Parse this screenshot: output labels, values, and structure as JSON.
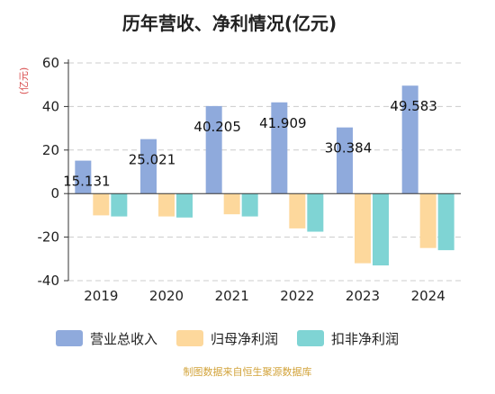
{
  "chart_data": {
    "type": "bar",
    "title": "历年营收、净利情况(亿元)",
    "ylabel": "(亿元)",
    "ylim": [
      -40,
      60
    ],
    "yticks": [
      -40,
      -20,
      0,
      20,
      40,
      60
    ],
    "grid": true,
    "legend_position": "bottom",
    "categories": [
      "2019",
      "2020",
      "2021",
      "2022",
      "2023",
      "2024"
    ],
    "series": [
      {
        "name": "营业总收入",
        "color": "#8faadc",
        "values": [
          15.131,
          25.021,
          40.205,
          41.909,
          30.384,
          49.583
        ],
        "labels": [
          "15.131",
          "25.021",
          "40.205",
          "41.909",
          "30.384",
          "49.583"
        ]
      },
      {
        "name": "归母净利润",
        "color": "#fdd89c",
        "values": [
          -10,
          -10.5,
          -9.5,
          -16,
          -32,
          -25
        ]
      },
      {
        "name": "扣非净利润",
        "color": "#7fd4d4",
        "values": [
          -10.5,
          -11,
          -10.5,
          -17.5,
          -33,
          -26
        ]
      }
    ],
    "source": "制图数据来自恒生聚源数据库"
  }
}
